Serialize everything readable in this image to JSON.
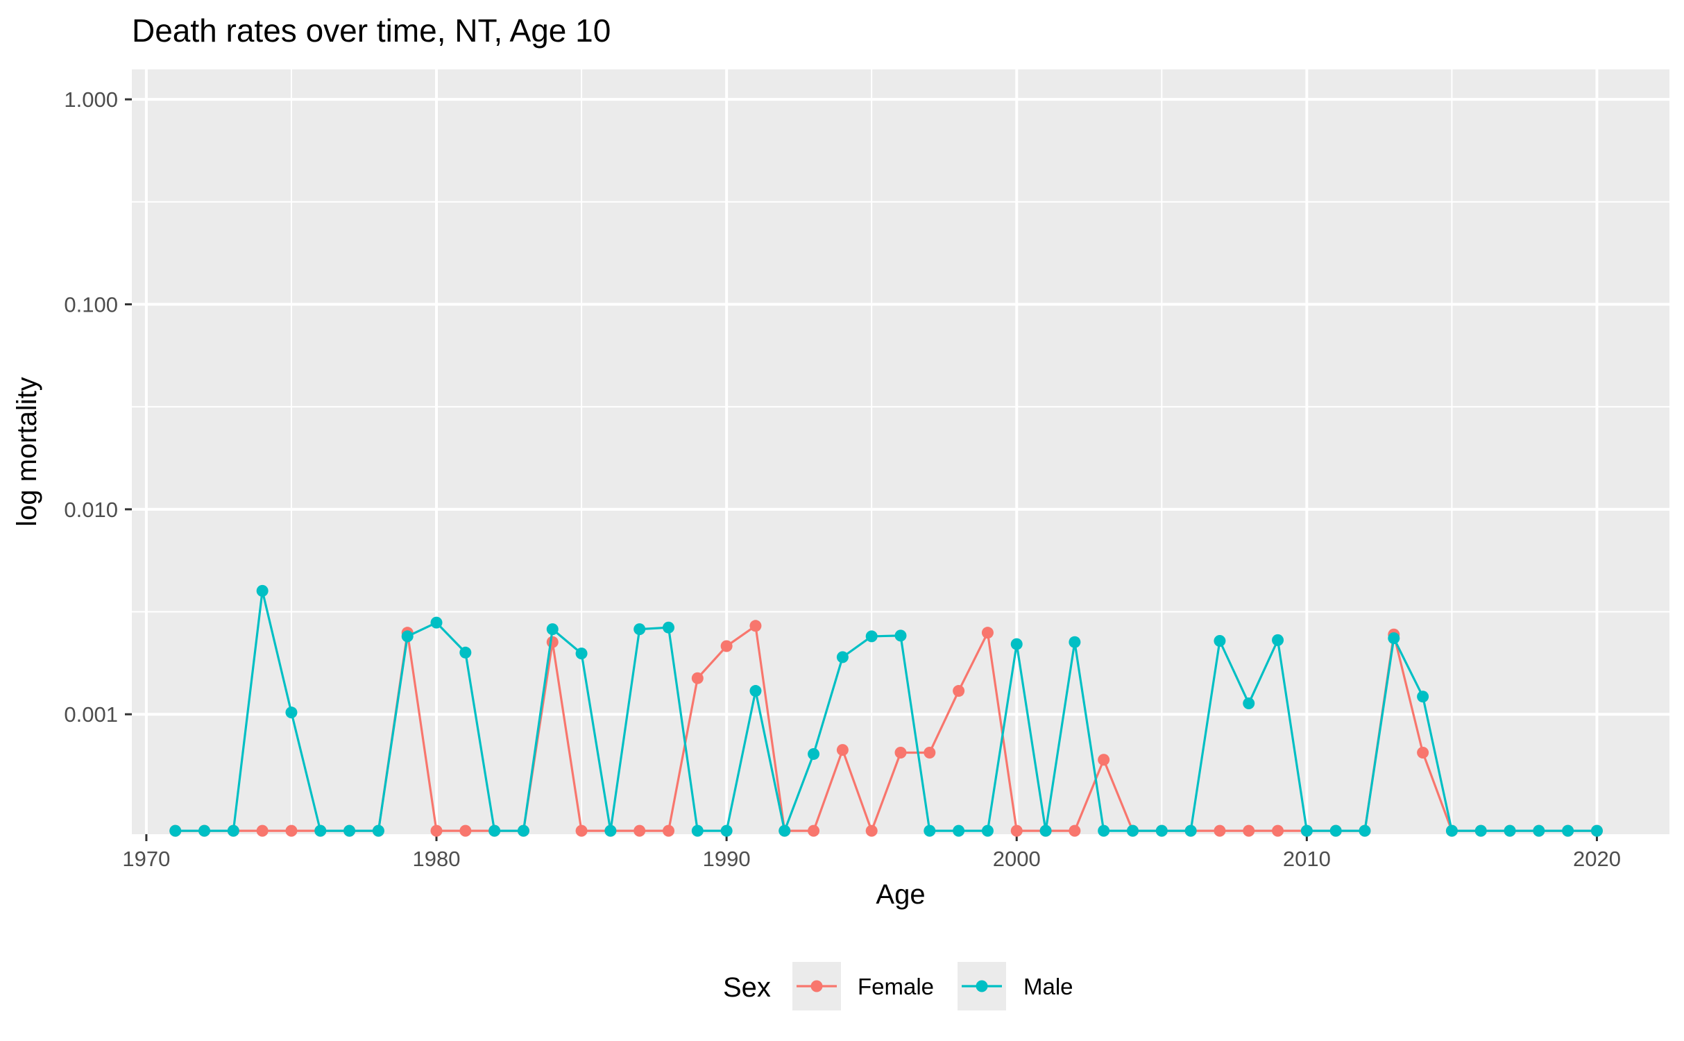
{
  "chart_data": {
    "type": "line",
    "title": "Death rates over time, NT, Age 10",
    "xlabel": "Age",
    "ylabel": "log mortality",
    "x_scale": "linear",
    "y_scale": "log10",
    "xlim": [
      1969.5,
      2022.5
    ],
    "ylim": [
      0.00026,
      1.4
    ],
    "x_ticks": [
      1970,
      1980,
      1990,
      2000,
      2010,
      2020
    ],
    "x_tick_labels": [
      "1970",
      "1980",
      "1990",
      "2000",
      "2010",
      "2020"
    ],
    "y_ticks": [
      0.001,
      0.01,
      0.1,
      1
    ],
    "y_tick_labels": [
      "0.001",
      "0.010",
      "0.100",
      "1.000"
    ],
    "grid": true,
    "legend": {
      "title": "Sex",
      "position": "bottom"
    },
    "x": [
      1971,
      1972,
      1973,
      1974,
      1975,
      1976,
      1977,
      1978,
      1979,
      1980,
      1981,
      1982,
      1983,
      1984,
      1985,
      1986,
      1987,
      1988,
      1989,
      1990,
      1991,
      1992,
      1993,
      1994,
      1995,
      1996,
      1997,
      1998,
      1999,
      2000,
      2001,
      2002,
      2003,
      2004,
      2005,
      2006,
      2007,
      2008,
      2009,
      2010,
      2011,
      2012,
      2013,
      2014,
      2015,
      2016,
      2017,
      2018,
      2019,
      2020
    ],
    "series": [
      {
        "name": "Female",
        "color": "#f8766d",
        "values": [
          0.00027,
          0.00027,
          0.00027,
          0.00027,
          0.00027,
          0.00027,
          0.00027,
          0.00027,
          0.0025,
          0.00027,
          0.00027,
          0.00027,
          0.00027,
          0.00225,
          0.00027,
          0.00027,
          0.00027,
          0.00027,
          0.0015,
          0.00215,
          0.0027,
          0.00027,
          0.00027,
          0.00067,
          0.00027,
          0.00065,
          0.00065,
          0.0013,
          0.0025,
          0.00027,
          0.00027,
          0.00027,
          0.0006,
          0.00027,
          0.00027,
          0.00027,
          0.00027,
          0.00027,
          0.00027,
          0.00027,
          0.00027,
          0.00027,
          0.00245,
          0.00065,
          0.00027,
          0.00027,
          0.00027,
          0.00027,
          0.00027,
          0.00027
        ]
      },
      {
        "name": "Male",
        "color": "#00bfc4",
        "values": [
          0.00027,
          0.00027,
          0.00027,
          0.004,
          0.00102,
          0.00027,
          0.00027,
          0.00027,
          0.0024,
          0.0028,
          0.002,
          0.00027,
          0.00027,
          0.0026,
          0.00198,
          0.00027,
          0.0026,
          0.00265,
          0.00027,
          0.00027,
          0.0013,
          0.00027,
          0.00064,
          0.0019,
          0.0024,
          0.00242,
          0.00027,
          0.00027,
          0.00027,
          0.0022,
          0.00027,
          0.00225,
          0.00027,
          0.00027,
          0.00027,
          0.00027,
          0.00228,
          0.00113,
          0.0023,
          0.00027,
          0.00027,
          0.00027,
          0.00235,
          0.00122,
          0.00027,
          0.00027,
          0.00027,
          0.00027,
          0.00027,
          0.00027
        ]
      }
    ],
    "panel_background": "#ebebeb",
    "grid_color": "#ffffff"
  }
}
